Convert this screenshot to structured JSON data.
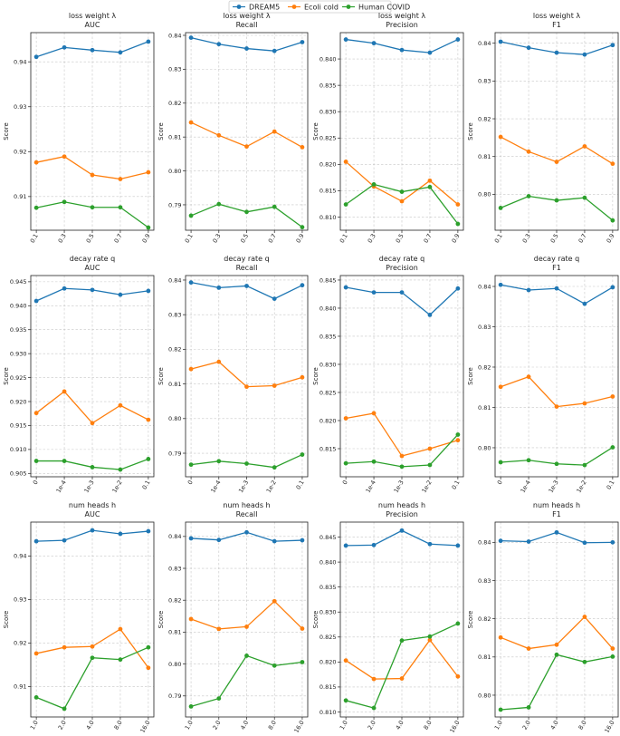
{
  "legend": {
    "entries": [
      {
        "name": "DREAM5",
        "color": "#1f77b4"
      },
      {
        "name": "Ecoli cold",
        "color": "#ff7f0e"
      },
      {
        "name": "Human COVID",
        "color": "#2ca02c"
      }
    ]
  },
  "chart_data": [
    {
      "type": "line",
      "title_line1": "loss weight λ",
      "title_line2": "AUC",
      "ylabel": "Score",
      "categories": [
        "0.1",
        "0.3",
        "0.5",
        "0.7",
        "0.9"
      ],
      "yticks": [
        "0.91",
        "0.92",
        "0.93",
        "0.94"
      ],
      "ytick_values": [
        0.91,
        0.92,
        0.93,
        0.94
      ],
      "ylim": [
        0.9025,
        0.9465
      ],
      "series": [
        {
          "name": "DREAM5",
          "values": [
            0.9411,
            0.9432,
            0.9426,
            0.9421,
            0.9445
          ]
        },
        {
          "name": "Ecoli cold",
          "values": [
            0.9176,
            0.9189,
            0.9148,
            0.9139,
            0.9154
          ]
        },
        {
          "name": "Human COVID",
          "values": [
            0.9075,
            0.9088,
            0.9076,
            0.9076,
            0.9031
          ]
        }
      ]
    },
    {
      "type": "line",
      "title_line1": "loss weight λ",
      "title_line2": "Recall",
      "ylabel": "Score",
      "categories": [
        "0.1",
        "0.3",
        "0.5",
        "0.7",
        "0.9"
      ],
      "yticks": [
        "0.79",
        "0.80",
        "0.81",
        "0.82",
        "0.83",
        "0.84"
      ],
      "ytick_values": [
        0.79,
        0.8,
        0.81,
        0.82,
        0.83,
        0.84
      ],
      "ylim": [
        0.7825,
        0.8408
      ],
      "series": [
        {
          "name": "DREAM5",
          "values": [
            0.8393,
            0.8374,
            0.8361,
            0.8354,
            0.838
          ]
        },
        {
          "name": "Ecoli cold",
          "values": [
            0.8143,
            0.8105,
            0.8072,
            0.8116,
            0.807
          ]
        },
        {
          "name": "Human COVID",
          "values": [
            0.7868,
            0.7902,
            0.7879,
            0.7894,
            0.7834
          ]
        }
      ]
    },
    {
      "type": "line",
      "title_line1": "loss weight λ",
      "title_line2": "Precision",
      "ylabel": "Score",
      "categories": [
        "0.1",
        "0.3",
        "0.5",
        "0.7",
        "0.9"
      ],
      "yticks": [
        "0.810",
        "0.815",
        "0.820",
        "0.825",
        "0.830",
        "0.835",
        "0.840"
      ],
      "ytick_values": [
        0.81,
        0.815,
        0.82,
        0.825,
        0.83,
        0.835,
        0.84
      ],
      "ylim": [
        0.8075,
        0.845
      ],
      "series": [
        {
          "name": "DREAM5",
          "values": [
            0.8437,
            0.843,
            0.8417,
            0.8412,
            0.8437
          ]
        },
        {
          "name": "Ecoli cold",
          "values": [
            0.8205,
            0.8158,
            0.813,
            0.8169,
            0.8124
          ]
        },
        {
          "name": "Human COVID",
          "values": [
            0.8124,
            0.8162,
            0.8148,
            0.8157,
            0.8087
          ]
        }
      ]
    },
    {
      "type": "line",
      "title_line1": "loss weight λ",
      "title_line2": "F1",
      "ylabel": "Score",
      "categories": [
        "0.1",
        "0.3",
        "0.5",
        "0.7",
        "0.9"
      ],
      "yticks": [
        "0.80",
        "0.81",
        "0.82",
        "0.83",
        "0.84"
      ],
      "ytick_values": [
        0.8,
        0.81,
        0.82,
        0.83,
        0.84
      ],
      "ylim": [
        0.7905,
        0.8428
      ],
      "series": [
        {
          "name": "DREAM5",
          "values": [
            0.8404,
            0.8388,
            0.8375,
            0.837,
            0.8395
          ]
        },
        {
          "name": "Ecoli cold",
          "values": [
            0.8152,
            0.8113,
            0.8086,
            0.8127,
            0.8081
          ]
        },
        {
          "name": "Human COVID",
          "values": [
            0.7964,
            0.7995,
            0.7984,
            0.7991,
            0.7931
          ]
        }
      ]
    },
    {
      "type": "line",
      "title_line1": "decay rate q",
      "title_line2": "AUC",
      "ylabel": "Score",
      "categories": [
        "0",
        "1e-4",
        "1e-3",
        "1e-2",
        "0.1"
      ],
      "yticks": [
        "0.905",
        "0.910",
        "0.915",
        "0.920",
        "0.925",
        "0.930",
        "0.935",
        "0.940",
        "0.945"
      ],
      "ytick_values": [
        0.905,
        0.91,
        0.915,
        0.92,
        0.925,
        0.93,
        0.935,
        0.94,
        0.945
      ],
      "ylim": [
        0.9043,
        0.9463
      ],
      "series": [
        {
          "name": "DREAM5",
          "values": [
            0.941,
            0.9436,
            0.9433,
            0.9423,
            0.9431
          ]
        },
        {
          "name": "Ecoli cold",
          "values": [
            0.9176,
            0.9221,
            0.9155,
            0.9192,
            0.9162
          ]
        },
        {
          "name": "Human COVID",
          "values": [
            0.9076,
            0.9076,
            0.9063,
            0.9058,
            0.908
          ]
        }
      ]
    },
    {
      "type": "line",
      "title_line1": "decay rate q",
      "title_line2": "Recall",
      "ylabel": "Score",
      "categories": [
        "0",
        "1e-4",
        "1e-3",
        "1e-2",
        "0.1"
      ],
      "yticks": [
        "0.79",
        "0.80",
        "0.81",
        "0.82",
        "0.83",
        "0.84"
      ],
      "ytick_values": [
        0.79,
        0.8,
        0.81,
        0.82,
        0.83,
        0.84
      ],
      "ylim": [
        0.7832,
        0.8413
      ],
      "series": [
        {
          "name": "DREAM5",
          "values": [
            0.8393,
            0.8378,
            0.8383,
            0.8346,
            0.8385
          ]
        },
        {
          "name": "Ecoli cold",
          "values": [
            0.8143,
            0.8164,
            0.8092,
            0.8095,
            0.8119
          ]
        },
        {
          "name": "Human COVID",
          "values": [
            0.7867,
            0.7877,
            0.787,
            0.7859,
            0.7896
          ]
        }
      ]
    },
    {
      "type": "line",
      "title_line1": "decay rate q",
      "title_line2": "Precision",
      "ylabel": "Score",
      "categories": [
        "0",
        "1e-4",
        "1e-3",
        "1e-2",
        "0.1"
      ],
      "yticks": [
        "0.815",
        "0.820",
        "0.825",
        "0.830",
        "0.835",
        "0.840",
        "0.845"
      ],
      "ytick_values": [
        0.815,
        0.82,
        0.825,
        0.83,
        0.835,
        0.84,
        0.845
      ],
      "ylim": [
        0.81,
        0.8458
      ],
      "series": [
        {
          "name": "DREAM5",
          "values": [
            0.8437,
            0.8428,
            0.8428,
            0.8388,
            0.8435
          ]
        },
        {
          "name": "Ecoli cold",
          "values": [
            0.8204,
            0.8213,
            0.8137,
            0.815,
            0.8165
          ]
        },
        {
          "name": "Human COVID",
          "values": [
            0.8124,
            0.8127,
            0.8118,
            0.8121,
            0.8175
          ]
        }
      ]
    },
    {
      "type": "line",
      "title_line1": "decay rate q",
      "title_line2": "F1",
      "ylabel": "Score",
      "categories": [
        "0",
        "1e-4",
        "1e-3",
        "1e-2",
        "0.1"
      ],
      "yticks": [
        "0.80",
        "0.81",
        "0.82",
        "0.83",
        "0.84"
      ],
      "ytick_values": [
        0.8,
        0.81,
        0.82,
        0.83,
        0.84
      ],
      "ylim": [
        0.7928,
        0.8427
      ],
      "series": [
        {
          "name": "DREAM5",
          "values": [
            0.8404,
            0.8391,
            0.8395,
            0.8357,
            0.8398
          ]
        },
        {
          "name": "Ecoli cold",
          "values": [
            0.8151,
            0.8176,
            0.8102,
            0.811,
            0.8127
          ]
        },
        {
          "name": "Human COVID",
          "values": [
            0.7964,
            0.7969,
            0.796,
            0.7957,
            0.8001
          ]
        }
      ]
    },
    {
      "type": "line",
      "title_line1": "num heads h",
      "title_line2": "AUC",
      "ylabel": "Score",
      "categories": [
        "1.0",
        "2.0",
        "4.0",
        "8.0",
        "16.0"
      ],
      "yticks": [
        "0.91",
        "0.92",
        "0.93",
        "0.94"
      ],
      "ytick_values": [
        0.91,
        0.92,
        0.93,
        0.94
      ],
      "ylim": [
        0.903,
        0.9478
      ],
      "series": [
        {
          "name": "DREAM5",
          "values": [
            0.9434,
            0.9436,
            0.9459,
            0.9451,
            0.9457
          ]
        },
        {
          "name": "Ecoli cold",
          "values": [
            0.9176,
            0.919,
            0.9192,
            0.9232,
            0.9143
          ]
        },
        {
          "name": "Human COVID",
          "values": [
            0.9075,
            0.9049,
            0.9166,
            0.9162,
            0.919
          ]
        }
      ]
    },
    {
      "type": "line",
      "title_line1": "num heads h",
      "title_line2": "Recall",
      "ylabel": "Score",
      "categories": [
        "1.0",
        "2.0",
        "4.0",
        "8.0",
        "16.0"
      ],
      "yticks": [
        "0.79",
        "0.80",
        "0.81",
        "0.82",
        "0.83",
        "0.84"
      ],
      "ytick_values": [
        0.79,
        0.8,
        0.81,
        0.82,
        0.83,
        0.84
      ],
      "ylim": [
        0.7834,
        0.8445
      ],
      "series": [
        {
          "name": "DREAM5",
          "values": [
            0.8394,
            0.8389,
            0.8413,
            0.8385,
            0.8388
          ]
        },
        {
          "name": "Ecoli cold",
          "values": [
            0.8141,
            0.811,
            0.8117,
            0.8197,
            0.8111
          ]
        },
        {
          "name": "Human COVID",
          "values": [
            0.7867,
            0.7892,
            0.8026,
            0.7995,
            0.8006
          ]
        }
      ]
    },
    {
      "type": "line",
      "title_line1": "num heads h",
      "title_line2": "Precision",
      "ylabel": "Score",
      "categories": [
        "1.0",
        "2.0",
        "4.0",
        "8.0",
        "16.0"
      ],
      "yticks": [
        "0.810",
        "0.815",
        "0.820",
        "0.825",
        "0.830",
        "0.835",
        "0.840",
        "0.845"
      ],
      "ytick_values": [
        0.81,
        0.815,
        0.82,
        0.825,
        0.83,
        0.835,
        0.84,
        0.845
      ],
      "ylim": [
        0.809,
        0.848
      ],
      "series": [
        {
          "name": "DREAM5",
          "values": [
            0.8433,
            0.8434,
            0.8463,
            0.8436,
            0.8433
          ]
        },
        {
          "name": "Ecoli cold",
          "values": [
            0.8203,
            0.8166,
            0.8167,
            0.8244,
            0.8171
          ]
        },
        {
          "name": "Human COVID",
          "values": [
            0.8123,
            0.8108,
            0.8243,
            0.8251,
            0.8277
          ]
        }
      ]
    },
    {
      "type": "line",
      "title_line1": "num heads h",
      "title_line2": "F1",
      "ylabel": "Score",
      "categories": [
        "1.0",
        "2.0",
        "4.0",
        "8.0",
        "16.0"
      ],
      "yticks": [
        "0.80",
        "0.81",
        "0.82",
        "0.83",
        "0.84"
      ],
      "ytick_values": [
        0.8,
        0.81,
        0.82,
        0.83,
        0.84
      ],
      "ylim": [
        0.7943,
        0.8453
      ],
      "series": [
        {
          "name": "DREAM5",
          "values": [
            0.8404,
            0.8402,
            0.8426,
            0.8399,
            0.84
          ]
        },
        {
          "name": "Ecoli cold",
          "values": [
            0.8151,
            0.8122,
            0.8132,
            0.8205,
            0.8122
          ]
        },
        {
          "name": "Human COVID",
          "values": [
            0.7962,
            0.7968,
            0.8106,
            0.8087,
            0.8101
          ]
        }
      ]
    }
  ]
}
